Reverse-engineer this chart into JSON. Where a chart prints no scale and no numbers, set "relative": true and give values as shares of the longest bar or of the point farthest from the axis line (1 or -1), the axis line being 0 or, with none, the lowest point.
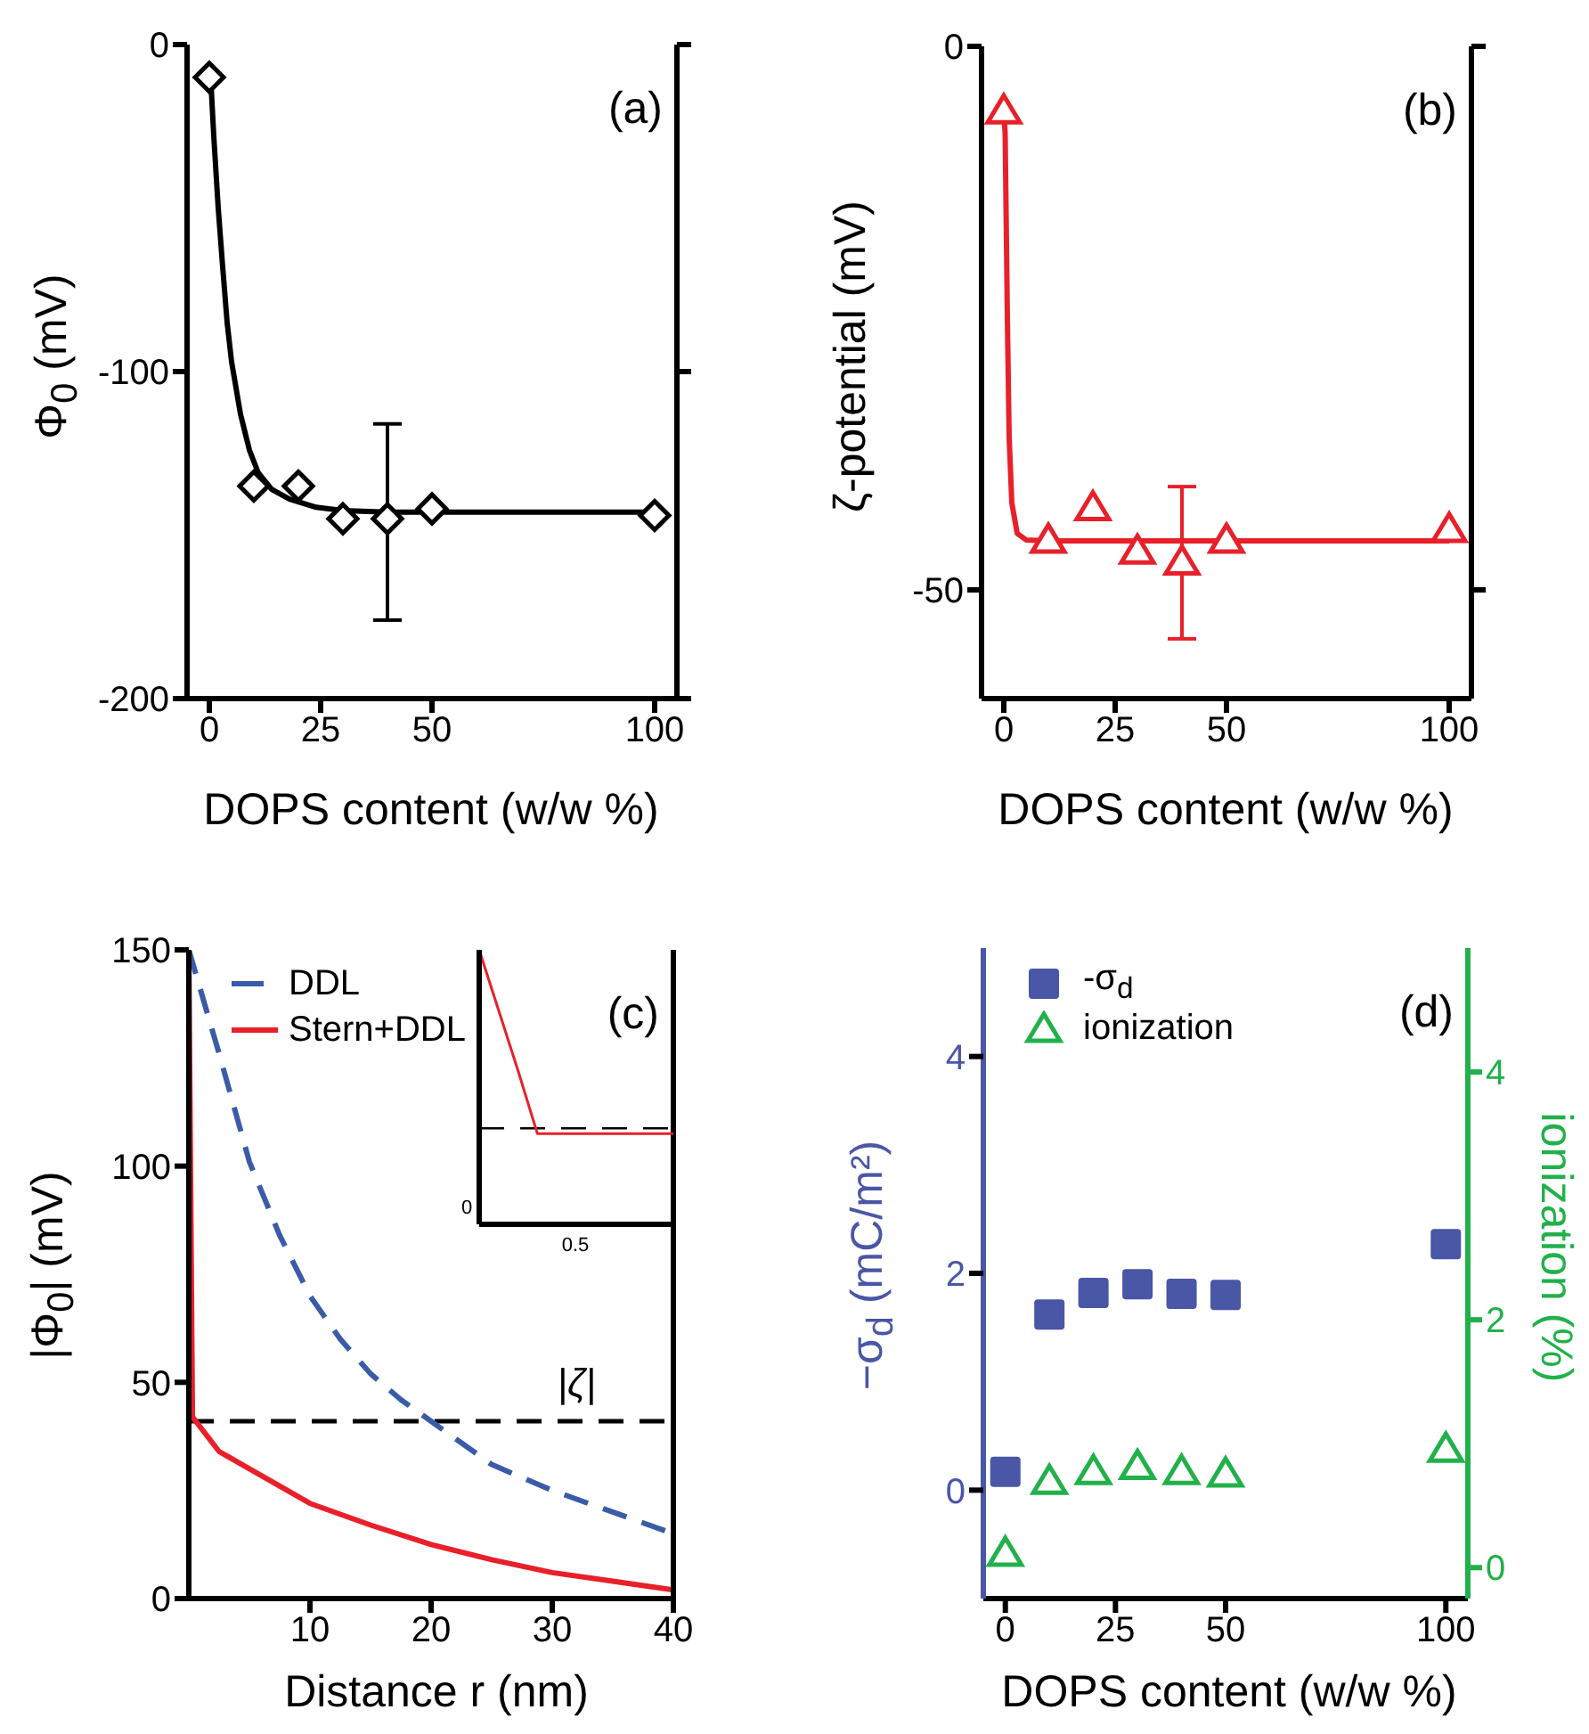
{
  "chart_data": [
    {
      "type": "scatter",
      "xlabel": "DOPS content (w/w %)",
      "ylabel": "Φ$_{0}$ (mV)",
      "xlim": [
        -5,
        105
      ],
      "xticks": [
        0,
        25,
        50,
        100
      ],
      "ylim": [
        -200,
        0
      ],
      "yticks": [
        0,
        -100,
        -200
      ],
      "annotations": [
        "(a)"
      ],
      "series": [
        {
          "color": "#000000",
          "marker": "diamond",
          "x": [
            0,
            10,
            20,
            30,
            40,
            50,
            100
          ],
          "values": [
            -10,
            -135,
            -135,
            -145,
            -145,
            -142,
            -144
          ],
          "errors": [
            null,
            null,
            null,
            null,
            [
              -176,
              -116
            ],
            null,
            null
          ]
        },
        {
          "type": "line",
          "color": "#000000",
          "x": [
            0.3,
            1,
            2,
            3,
            4,
            5,
            7,
            9,
            11,
            14,
            18,
            24,
            30,
            40,
            55,
            100
          ],
          "values": [
            -10,
            -28,
            -50,
            -68,
            -85,
            -97,
            -113,
            -124,
            -131,
            -136,
            -139,
            -141.5,
            -142.5,
            -143,
            -143,
            -143
          ]
        }
      ]
    },
    {
      "type": "scatter",
      "xlabel": "DOPS content (w/w %)",
      "ylabel": "ζ-potential (mV)",
      "xlim": [
        -5,
        105
      ],
      "xticks": [
        0,
        25,
        50,
        100
      ],
      "ylim": [
        -60,
        0
      ],
      "yticks": [
        0,
        -50
      ],
      "annotations": [
        "(b)"
      ],
      "series": [
        {
          "color": "#e8202a",
          "marker": "triangle",
          "x": [
            0,
            10,
            20,
            30,
            40,
            50,
            100
          ],
          "values": [
            -6,
            -45.5,
            -42.5,
            -46.5,
            -47.5,
            -45.5,
            -44.5
          ],
          "errors": [
            null,
            null,
            null,
            null,
            [
              -54.5,
              -40.5
            ],
            null,
            null
          ]
        },
        {
          "type": "line",
          "color": "#e8202a",
          "x": [
            0,
            0.3,
            0.8,
            1.2,
            1.8,
            3,
            5,
            10,
            55,
            100
          ],
          "values": [
            -6,
            -8,
            -25,
            -36,
            -42,
            -44.8,
            -45.4,
            -45.5,
            -45.5,
            -45.5
          ]
        }
      ]
    },
    {
      "type": "line",
      "xlabel": "Distance r (nm)",
      "ylabel": "|Φ$_{0}$| (mV)",
      "xlim": [
        0,
        40
      ],
      "xticks": [
        10,
        20,
        30,
        40
      ],
      "ylim": [
        0,
        150
      ],
      "yticks": [
        0,
        50,
        100,
        150
      ],
      "legend": "top left",
      "annotations": [
        "(c)"
      ],
      "ref_lines": [
        {
          "axis": "y",
          "value": 41,
          "label": "|ζ|",
          "color": "#000000",
          "line_style": "dashed"
        }
      ],
      "series": [
        {
          "name": "DDL",
          "color": "#3a5ba8",
          "line_style": "dashed",
          "x": [
            0,
            2.5,
            5,
            7.5,
            10,
            12.5,
            15,
            17.5,
            20,
            25,
            30,
            35,
            40
          ],
          "values": [
            150,
            126,
            101,
            84,
            70,
            60,
            52,
            46,
            41,
            31,
            25,
            20,
            15
          ]
        },
        {
          "name": "Stern+DDL",
          "color": "#e8202a",
          "x": [
            0,
            0.3,
            2.5,
            5,
            10,
            15,
            20,
            25,
            30,
            35,
            40
          ],
          "values": [
            150,
            42,
            34,
            30,
            22,
            17,
            12.5,
            9,
            6,
            4,
            2
          ]
        }
      ]
    },
    {
      "type": "line",
      "relative": true,
      "categories": [
        null,
        null,
        null,
        null,
        null,
        null,
        null,
        null,
        null,
        null,
        null
      ],
      "annotations": [
        "0",
        "0.5"
      ],
      "ref_lines": [
        {
          "axis": "y",
          "value": 0.35,
          "color": "#000000",
          "line_style": "dashed"
        }
      ],
      "series": [
        {
          "color": "#e8202a",
          "values": [
            1,
            0.78,
            0.56,
            0.33,
            0.33,
            0.33,
            0.33,
            0.33,
            0.33,
            0.33,
            0.33
          ]
        }
      ]
    },
    {
      "type": "scatter",
      "xlabel": "DOPS content (w/w %)",
      "ylabel": "−σ$_{d}$ (mC/m²)",
      "y2label": "ionization (%)",
      "xlim": [
        -5,
        105
      ],
      "xticks": [
        0,
        25,
        50,
        100
      ],
      "ylim": [
        -1,
        5
      ],
      "yticks": [
        0,
        2,
        4
      ],
      "y2lim": [
        -0.25,
        5
      ],
      "y2ticks": [
        0,
        2,
        4
      ],
      "legend": "top left",
      "annotations": [
        "(d)"
      ],
      "series": [
        {
          "name": "-σ$_{d}$",
          "color": "#4a56a6",
          "marker": "square",
          "x": [
            0,
            10,
            20,
            30,
            40,
            50,
            100
          ],
          "values": [
            0.17,
            1.62,
            1.82,
            1.9,
            1.81,
            1.8,
            2.27
          ]
        },
        {
          "name": "ionization",
          "color": "#22b04b",
          "marker": "triangle",
          "axis": "y2",
          "x": [
            0,
            10,
            20,
            30,
            40,
            50,
            100
          ],
          "values": [
            0.11,
            0.69,
            0.77,
            0.81,
            0.77,
            0.75,
            0.95
          ]
        }
      ]
    }
  ]
}
